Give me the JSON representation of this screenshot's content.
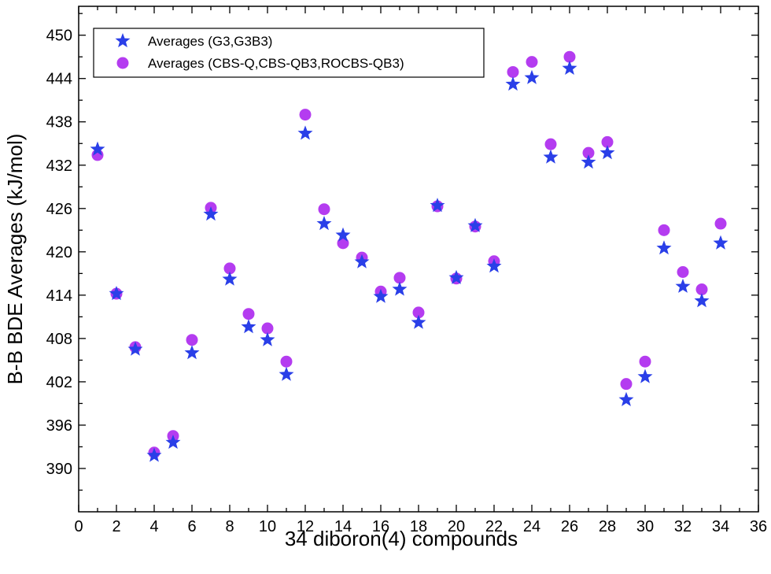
{
  "chart_data": {
    "type": "scatter",
    "title": "",
    "xlabel": "34 diboron(4) compounds",
    "ylabel": "B-B BDE Averages (kJ/mol)",
    "xlim": [
      0,
      36
    ],
    "ylim": [
      384,
      454
    ],
    "x_major_ticks": [
      0,
      2,
      4,
      6,
      8,
      10,
      12,
      14,
      16,
      18,
      20,
      22,
      24,
      26,
      28,
      30,
      32,
      34,
      36
    ],
    "y_major_ticks": [
      390,
      396,
      402,
      408,
      414,
      420,
      426,
      432,
      438,
      444,
      450
    ],
    "grid": false,
    "legend_position": "top-left",
    "series": [
      {
        "name": "Averages (G3,G3B3)",
        "marker": "star",
        "color": "#2a3fe8",
        "x": [
          1,
          2,
          3,
          4,
          5,
          6,
          7,
          8,
          9,
          10,
          11,
          12,
          13,
          14,
          15,
          16,
          17,
          18,
          19,
          20,
          21,
          22,
          23,
          24,
          25,
          26,
          27,
          28,
          29,
          30,
          31,
          32,
          33,
          34
        ],
        "y": [
          434.2,
          414.2,
          406.5,
          391.8,
          393.6,
          406.0,
          425.2,
          416.2,
          409.6,
          407.8,
          403.0,
          436.4,
          423.9,
          422.3,
          418.6,
          413.8,
          414.8,
          410.2,
          426.4,
          416.4,
          423.6,
          418.0,
          443.2,
          444.1,
          433.1,
          445.4,
          432.4,
          433.7,
          399.5,
          402.7,
          420.5,
          415.2,
          413.2,
          421.2
        ]
      },
      {
        "name": "Averages (CBS-Q,CBS-QB3,ROCBS-QB3)",
        "marker": "circle",
        "color": "#b43cf0",
        "x": [
          1,
          2,
          3,
          4,
          5,
          6,
          7,
          8,
          9,
          10,
          11,
          12,
          13,
          14,
          15,
          16,
          17,
          18,
          19,
          20,
          21,
          22,
          23,
          24,
          25,
          26,
          27,
          28,
          29,
          30,
          31,
          32,
          33,
          34
        ],
        "y": [
          433.4,
          414.2,
          406.8,
          392.2,
          394.5,
          407.8,
          426.1,
          417.7,
          411.4,
          409.4,
          404.8,
          439.0,
          425.9,
          421.2,
          419.2,
          414.5,
          416.4,
          411.6,
          426.3,
          416.3,
          423.5,
          418.7,
          444.9,
          446.3,
          434.9,
          447.0,
          433.7,
          435.2,
          401.7,
          404.8,
          423.0,
          417.2,
          414.8,
          423.9
        ]
      }
    ]
  }
}
